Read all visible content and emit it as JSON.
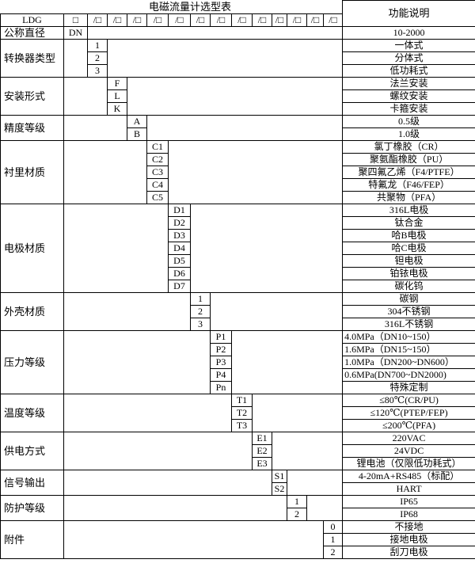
{
  "title": "电磁流量计选型表",
  "function_header": "功能说明",
  "model": "LDG",
  "header_first_box": "□",
  "header_box": "/□",
  "nominal": {
    "label": "公称直径",
    "code": "DN",
    "desc": "10-2000"
  },
  "groups": [
    {
      "label": "转换器类型",
      "col": 0,
      "codes": [
        "1",
        "2",
        "3"
      ],
      "descs": [
        "一体式",
        "分体式",
        "低功耗式"
      ]
    },
    {
      "label": "安装形式",
      "col": 1,
      "codes": [
        "F",
        "L",
        "K"
      ],
      "descs": [
        "法兰安装",
        "螺纹安装",
        "卡箍安装"
      ]
    },
    {
      "label": "精度等级",
      "col": 2,
      "codes": [
        "A",
        "B"
      ],
      "descs": [
        "0.5级",
        "1.0级"
      ]
    },
    {
      "label": "衬里材质",
      "col": 3,
      "codes": [
        "C1",
        "C2",
        "C3",
        "C4",
        "C5"
      ],
      "descs": [
        "氯丁橡胶（CR）",
        "聚氨酯橡胶（PU）",
        "聚四氟乙烯（F4/PTFE）",
        "特氟龙（F46/FEP）",
        "共聚物（PFA）"
      ]
    },
    {
      "label": "电极材质",
      "col": 4,
      "codes": [
        "D1",
        "D2",
        "D3",
        "D4",
        "D5",
        "D6",
        "D7"
      ],
      "descs": [
        "316L电极",
        "钛合金",
        "哈B电极",
        "哈C电极",
        "钽电极",
        "铂铱电极",
        "碳化钨"
      ]
    },
    {
      "label": "外壳材质",
      "col": 5,
      "codes": [
        "1",
        "2",
        "3"
      ],
      "descs": [
        "碳钢",
        "304不锈钢",
        "316L不锈钢"
      ]
    },
    {
      "label": "压力等级",
      "col": 6,
      "codes": [
        "P1",
        "P2",
        "P3",
        "P4",
        "Pn"
      ],
      "descs": [
        "4.0MPa（DN10~150）",
        "1.6MPa（DN15~150）",
        "1.0MPa（DN200~DN600）",
        "0.6MPa(DN700~DN2000)",
        "特殊定制"
      ],
      "left": [
        true,
        true,
        true,
        true,
        false
      ]
    },
    {
      "label": "温度等级",
      "col": 7,
      "codes": [
        "T1",
        "T2",
        "T3"
      ],
      "descs": [
        "≤80℃(CR/PU)",
        "≤120℃(PTEP/FEP)",
        "≤200℃(PFA)"
      ]
    },
    {
      "label": "供电方式",
      "col": 8,
      "codes": [
        "E1",
        "E2",
        "E3"
      ],
      "descs": [
        "220VAC",
        "24VDC",
        "锂电池（仅限低功耗式）"
      ]
    },
    {
      "label": "信号输出",
      "col": 9,
      "codes": [
        "S1",
        "S2"
      ],
      "descs": [
        "4-20mA+RS485（标配）",
        "HART"
      ]
    },
    {
      "label": "防护等级",
      "col": 10,
      "codes": [
        "1",
        "2"
      ],
      "descs": [
        "IP65",
        "IP68"
      ]
    },
    {
      "label": "附件",
      "col": 12,
      "codes": [
        "0",
        "1",
        "2"
      ],
      "descs": [
        "不接地",
        "接地电极",
        "刮刀电极"
      ]
    }
  ]
}
